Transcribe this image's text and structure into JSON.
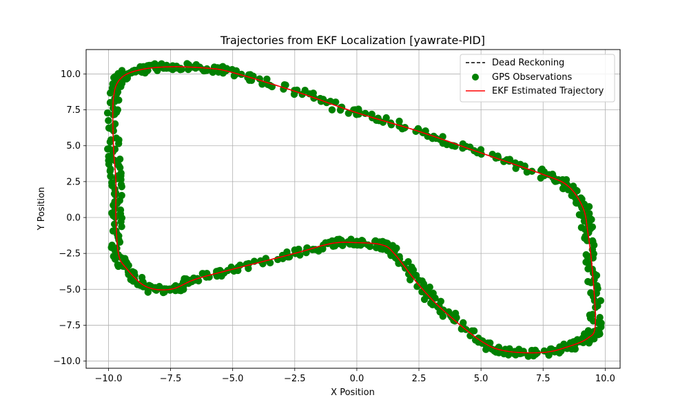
{
  "chart_data": {
    "type": "line",
    "title": "Trajectories from EKF Localization [yawrate-PID]",
    "xlabel": "X Position",
    "ylabel": "Y Position",
    "xlim": [
      -10.9,
      10.6
    ],
    "ylim": [
      -10.5,
      11.7
    ],
    "xticks": [
      -10.0,
      -7.5,
      -5.0,
      -2.5,
      0.0,
      2.5,
      5.0,
      7.5,
      10.0
    ],
    "xtick_labels": [
      "−10.0",
      "−7.5",
      "−5.0",
      "−2.5",
      "0.0",
      "2.5",
      "5.0",
      "7.5",
      "10.0"
    ],
    "yticks": [
      -10.0,
      -7.5,
      -5.0,
      -2.5,
      0.0,
      2.5,
      5.0,
      7.5,
      10.0
    ],
    "ytick_labels": [
      "−10.0",
      "−7.5",
      "−5.0",
      "−2.5",
      "0.0",
      "2.5",
      "5.0",
      "7.5",
      "10.0"
    ],
    "grid": true,
    "legend_position": "top-right",
    "series": [
      {
        "name": "Dead Reckoning",
        "style": "dashed-line",
        "color": "#000000"
      },
      {
        "name": "GPS Observations",
        "style": "scatter",
        "color": "#008000"
      },
      {
        "name": "EKF Estimated Trajectory",
        "style": "line",
        "color": "#ff0000"
      }
    ],
    "path": [
      [
        0.0,
        7.3
      ],
      [
        2.5,
        6.0
      ],
      [
        5.0,
        4.5
      ],
      [
        7.5,
        3.0
      ],
      [
        8.5,
        2.2
      ],
      [
        9.1,
        0.7
      ],
      [
        9.3,
        -1.0
      ],
      [
        9.5,
        -4.0
      ],
      [
        9.6,
        -7.5
      ],
      [
        9.3,
        -8.4
      ],
      [
        8.5,
        -9.0
      ],
      [
        7.5,
        -9.4
      ],
      [
        6.0,
        -9.3
      ],
      [
        5.0,
        -8.6
      ],
      [
        3.5,
        -6.5
      ],
      [
        2.5,
        -4.7
      ],
      [
        1.5,
        -2.5
      ],
      [
        1.0,
        -1.9
      ],
      [
        0.0,
        -1.75
      ],
      [
        -1.0,
        -1.8
      ],
      [
        -2.5,
        -2.5
      ],
      [
        -5.0,
        -3.6
      ],
      [
        -6.5,
        -4.3
      ],
      [
        -7.5,
        -5.0
      ],
      [
        -8.5,
        -4.8
      ],
      [
        -9.3,
        -3.5
      ],
      [
        -9.6,
        -2.5
      ],
      [
        -9.7,
        0.0
      ],
      [
        -9.7,
        2.5
      ],
      [
        -9.8,
        5.0
      ],
      [
        -9.8,
        8.3
      ],
      [
        -9.5,
        9.7
      ],
      [
        -8.7,
        10.3
      ],
      [
        -7.5,
        10.5
      ],
      [
        -6.0,
        10.4
      ],
      [
        -5.0,
        10.1
      ],
      [
        -2.5,
        8.8
      ],
      [
        0.0,
        7.3
      ]
    ]
  }
}
